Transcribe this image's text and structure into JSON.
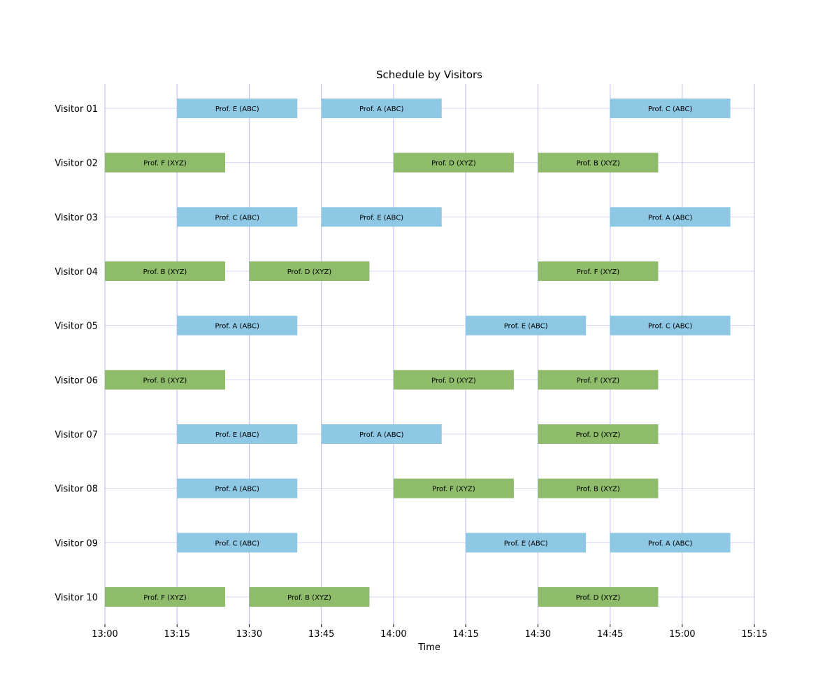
{
  "chart_data": {
    "type": "gantt",
    "title": "Schedule by Visitors",
    "xlabel": "Time",
    "ylabel": "",
    "x_ticks": [
      "13:00",
      "13:15",
      "13:30",
      "13:45",
      "14:00",
      "14:15",
      "14:30",
      "14:45",
      "15:00",
      "15:15"
    ],
    "xlim": [
      "13:00",
      "15:15"
    ],
    "categories": [
      "Visitor 01",
      "Visitor 02",
      "Visitor 03",
      "Visitor 04",
      "Visitor 05",
      "Visitor 06",
      "Visitor 07",
      "Visitor 08",
      "Visitor 09",
      "Visitor 10"
    ],
    "grid": true,
    "group_colors": {
      "ABC": "#8ec8e4",
      "XYZ": "#8fbc6b"
    },
    "gridline_colors": {
      "vertical": "#a8a8ee",
      "horizontal": "#d8d8f4"
    },
    "meetings": [
      {
        "visitor": "Visitor 01",
        "label": "Prof. E (ABC)",
        "group": "ABC",
        "start": "13:15",
        "end": "13:40"
      },
      {
        "visitor": "Visitor 01",
        "label": "Prof. A (ABC)",
        "group": "ABC",
        "start": "13:45",
        "end": "14:10"
      },
      {
        "visitor": "Visitor 01",
        "label": "Prof. C (ABC)",
        "group": "ABC",
        "start": "14:45",
        "end": "15:10"
      },
      {
        "visitor": "Visitor 02",
        "label": "Prof. F (XYZ)",
        "group": "XYZ",
        "start": "13:00",
        "end": "13:25"
      },
      {
        "visitor": "Visitor 02",
        "label": "Prof. D (XYZ)",
        "group": "XYZ",
        "start": "14:00",
        "end": "14:25"
      },
      {
        "visitor": "Visitor 02",
        "label": "Prof. B (XYZ)",
        "group": "XYZ",
        "start": "14:30",
        "end": "14:55"
      },
      {
        "visitor": "Visitor 03",
        "label": "Prof. C (ABC)",
        "group": "ABC",
        "start": "13:15",
        "end": "13:40"
      },
      {
        "visitor": "Visitor 03",
        "label": "Prof. E (ABC)",
        "group": "ABC",
        "start": "13:45",
        "end": "14:10"
      },
      {
        "visitor": "Visitor 03",
        "label": "Prof. A (ABC)",
        "group": "ABC",
        "start": "14:45",
        "end": "15:10"
      },
      {
        "visitor": "Visitor 04",
        "label": "Prof. B (XYZ)",
        "group": "XYZ",
        "start": "13:00",
        "end": "13:25"
      },
      {
        "visitor": "Visitor 04",
        "label": "Prof. D (XYZ)",
        "group": "XYZ",
        "start": "13:30",
        "end": "13:55"
      },
      {
        "visitor": "Visitor 04",
        "label": "Prof. F (XYZ)",
        "group": "XYZ",
        "start": "14:30",
        "end": "14:55"
      },
      {
        "visitor": "Visitor 05",
        "label": "Prof. A (ABC)",
        "group": "ABC",
        "start": "13:15",
        "end": "13:40"
      },
      {
        "visitor": "Visitor 05",
        "label": "Prof. E (ABC)",
        "group": "ABC",
        "start": "14:15",
        "end": "14:40"
      },
      {
        "visitor": "Visitor 05",
        "label": "Prof. C (ABC)",
        "group": "ABC",
        "start": "14:45",
        "end": "15:10"
      },
      {
        "visitor": "Visitor 06",
        "label": "Prof. B (XYZ)",
        "group": "XYZ",
        "start": "13:00",
        "end": "13:25"
      },
      {
        "visitor": "Visitor 06",
        "label": "Prof. D (XYZ)",
        "group": "XYZ",
        "start": "14:00",
        "end": "14:25"
      },
      {
        "visitor": "Visitor 06",
        "label": "Prof. F (XYZ)",
        "group": "XYZ",
        "start": "14:30",
        "end": "14:55"
      },
      {
        "visitor": "Visitor 07",
        "label": "Prof. E (ABC)",
        "group": "ABC",
        "start": "13:15",
        "end": "13:40"
      },
      {
        "visitor": "Visitor 07",
        "label": "Prof. A (ABC)",
        "group": "ABC",
        "start": "13:45",
        "end": "14:10"
      },
      {
        "visitor": "Visitor 07",
        "label": "Prof. D (XYZ)",
        "group": "XYZ",
        "start": "14:30",
        "end": "14:55"
      },
      {
        "visitor": "Visitor 08",
        "label": "Prof. A (ABC)",
        "group": "ABC",
        "start": "13:15",
        "end": "13:40"
      },
      {
        "visitor": "Visitor 08",
        "label": "Prof. F (XYZ)",
        "group": "XYZ",
        "start": "14:00",
        "end": "14:25"
      },
      {
        "visitor": "Visitor 08",
        "label": "Prof. B (XYZ)",
        "group": "XYZ",
        "start": "14:30",
        "end": "14:55"
      },
      {
        "visitor": "Visitor 09",
        "label": "Prof. C (ABC)",
        "group": "ABC",
        "start": "13:15",
        "end": "13:40"
      },
      {
        "visitor": "Visitor 09",
        "label": "Prof. E (ABC)",
        "group": "ABC",
        "start": "14:15",
        "end": "14:40"
      },
      {
        "visitor": "Visitor 09",
        "label": "Prof. A (ABC)",
        "group": "ABC",
        "start": "14:45",
        "end": "15:10"
      },
      {
        "visitor": "Visitor 10",
        "label": "Prof. F (XYZ)",
        "group": "XYZ",
        "start": "13:00",
        "end": "13:25"
      },
      {
        "visitor": "Visitor 10",
        "label": "Prof. B (XYZ)",
        "group": "XYZ",
        "start": "13:30",
        "end": "13:55"
      },
      {
        "visitor": "Visitor 10",
        "label": "Prof. D (XYZ)",
        "group": "XYZ",
        "start": "14:30",
        "end": "14:55"
      }
    ]
  }
}
